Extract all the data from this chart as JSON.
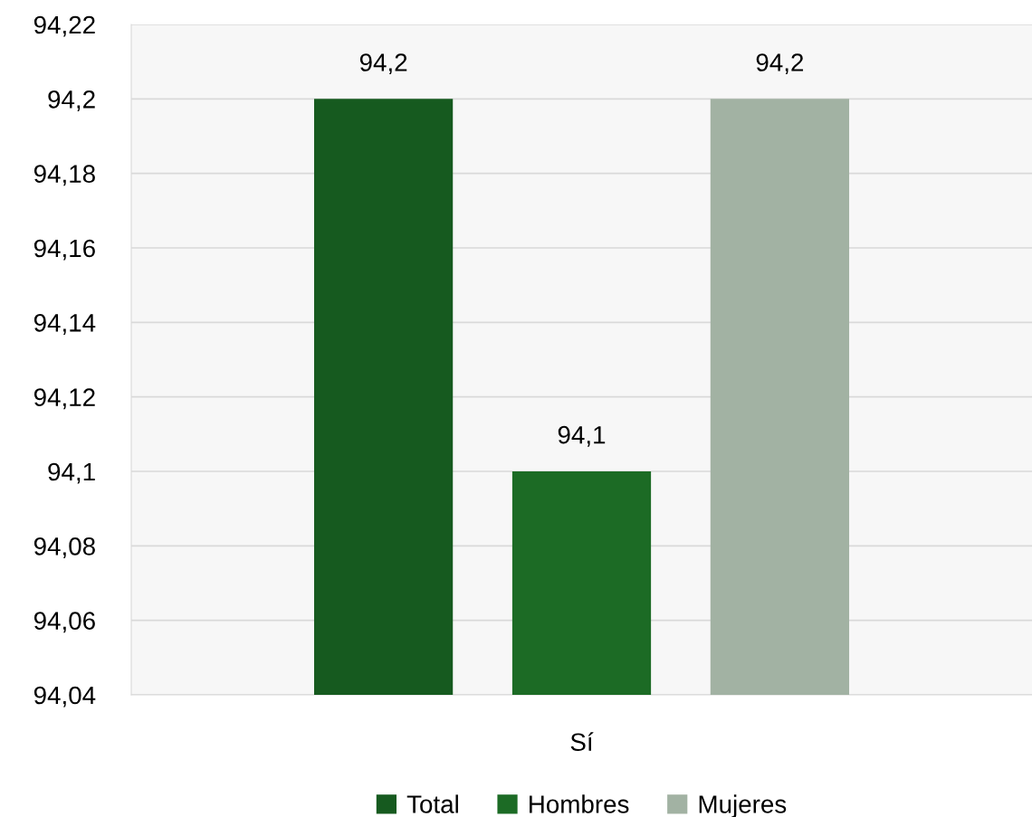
{
  "chart_data": {
    "type": "bar",
    "categories": [
      "Sí"
    ],
    "series": [
      {
        "name": "Total",
        "color": "#165a1f",
        "values": [
          94.2
        ],
        "value_labels": [
          "94,2"
        ]
      },
      {
        "name": "Hombres",
        "color": "#1c6b25",
        "values": [
          94.1
        ],
        "value_labels": [
          "94,1"
        ]
      },
      {
        "name": "Mujeres",
        "color": "#a2b2a3",
        "values": [
          94.2
        ],
        "value_labels": [
          "94,2"
        ]
      }
    ],
    "ylim": [
      94.04,
      94.22
    ],
    "yticks": [
      {
        "value": 94.04,
        "label": "94,04"
      },
      {
        "value": 94.06,
        "label": "94,06"
      },
      {
        "value": 94.08,
        "label": "94,08"
      },
      {
        "value": 94.1,
        "label": "94,1"
      },
      {
        "value": 94.12,
        "label": "94,12"
      },
      {
        "value": 94.14,
        "label": "94,14"
      },
      {
        "value": 94.16,
        "label": "94,16"
      },
      {
        "value": 94.18,
        "label": "94,18"
      },
      {
        "value": 94.2,
        "label": "94,2"
      },
      {
        "value": 94.22,
        "label": "94,22"
      }
    ],
    "grid": "y",
    "legend": "bottom"
  }
}
